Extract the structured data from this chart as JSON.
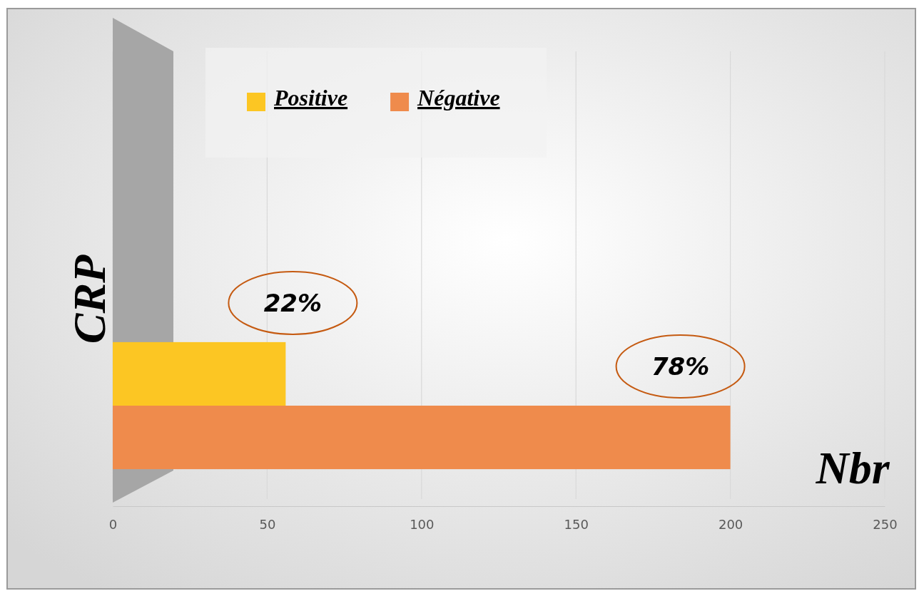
{
  "chart_data": {
    "type": "bar",
    "orientation": "horizontal",
    "xlabel": "Nbr",
    "ylabel": "CRP",
    "categories": [
      null
    ],
    "series": [
      {
        "name": "Positive",
        "color": "#fcc623",
        "values": [
          56
        ]
      },
      {
        "name": "Négative",
        "color": "#ef8b4c",
        "values": [
          200
        ]
      }
    ],
    "annotations": [
      "22%",
      "78%"
    ],
    "xlim": [
      0,
      250
    ],
    "xticks": [
      0,
      50,
      100,
      150,
      200,
      250
    ],
    "grid": "x",
    "legend": "top"
  }
}
